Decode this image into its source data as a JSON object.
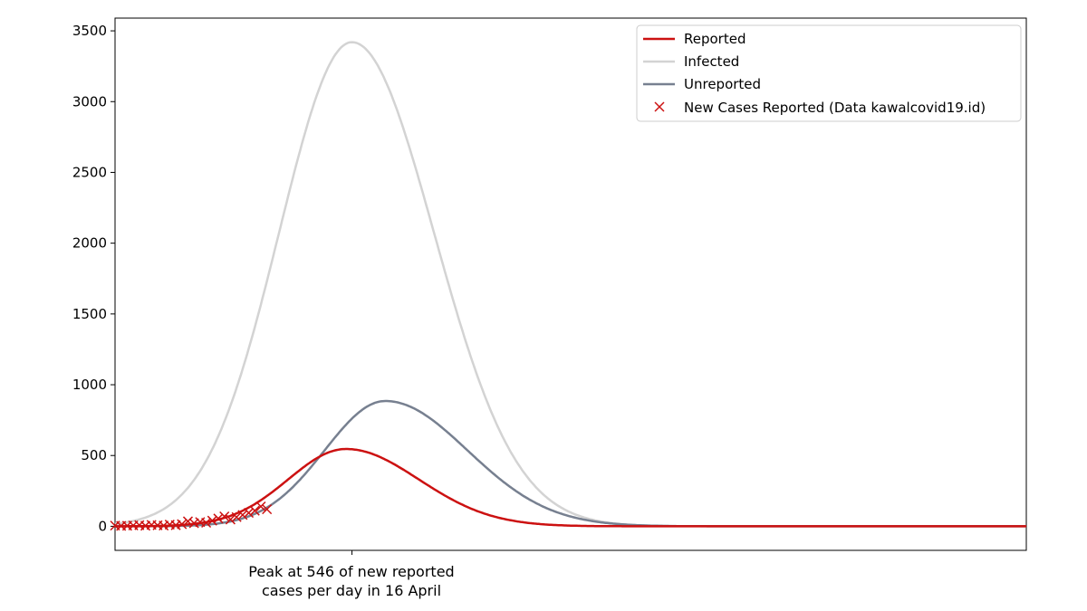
{
  "chart_data": {
    "type": "line",
    "title": "",
    "xlabel": "",
    "ylabel": "",
    "ylim": [
      -170,
      3590
    ],
    "xlim": [
      0,
      300
    ],
    "yticks": [
      0,
      500,
      1000,
      1500,
      2000,
      2500,
      3000,
      3500
    ],
    "grid": false,
    "legend_position": "top-right",
    "colors": {
      "reported": "#cc1111",
      "infected": "#d3d3d3",
      "unreported": "#778090",
      "scatter": "#cc1111"
    },
    "series": [
      {
        "name": "Reported",
        "kind": "gaussian",
        "peak": 546,
        "peak_day": 76,
        "sigma_left": 19,
        "sigma_right": 24
      },
      {
        "name": "Infected",
        "kind": "gaussian",
        "peak": 3420,
        "peak_day": 78,
        "sigma_left": 24,
        "sigma_right": 27
      },
      {
        "name": "Unreported",
        "kind": "gaussian",
        "peak": 885,
        "peak_day": 89,
        "sigma_left": 20,
        "sigma_right": 27
      }
    ],
    "scatter": {
      "name": "New Cases Reported (Data kawalcovid19.id)",
      "x": [
        0,
        2,
        4,
        6,
        8,
        10,
        12,
        14,
        16,
        18,
        20,
        22,
        24,
        26,
        28,
        30,
        32,
        34,
        36,
        38,
        40,
        42,
        44,
        46,
        48,
        50
      ],
      "y": [
        5,
        3,
        4,
        6,
        8,
        4,
        10,
        7,
        5,
        12,
        8,
        15,
        35,
        22,
        30,
        25,
        40,
        55,
        70,
        48,
        65,
        80,
        95,
        110,
        140,
        120
      ]
    },
    "annotation": {
      "line1": "Peak at 546 of new reported",
      "line2": "cases per day in 16 April",
      "x": 78
    }
  }
}
